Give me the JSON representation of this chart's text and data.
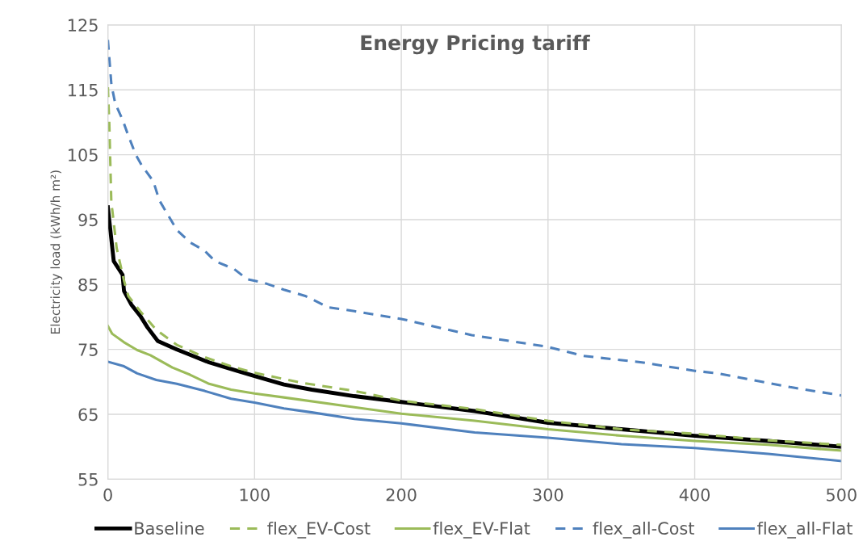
{
  "chart_data": {
    "type": "line",
    "title": "Energy Pricing tariff",
    "ylabel": "Electricity load (kWh/h m²)",
    "xlim": [
      0,
      500
    ],
    "xticks": [
      0,
      100,
      200,
      300,
      400,
      500
    ],
    "ylim": [
      55,
      125
    ],
    "yticks": [
      55,
      65,
      75,
      85,
      95,
      105,
      115,
      125
    ],
    "grid": true,
    "legend": "bottom",
    "marker": "none",
    "series": [
      {
        "name": "Baseline",
        "color": "#000000",
        "line_style": "solid",
        "x": [
          0,
          4,
          10,
          11,
          16,
          22,
          27,
          34,
          47,
          58,
          69,
          78,
          88,
          100,
          120,
          139,
          168,
          200,
          250,
          300,
          350,
          400,
          450,
          500
        ],
        "values": [
          96.9,
          88.6,
          86.5,
          84.0,
          81.9,
          80.2,
          78.4,
          76.3,
          75.0,
          74.0,
          73.0,
          72.4,
          71.7,
          70.9,
          69.6,
          68.8,
          67.8,
          66.9,
          65.5,
          63.7,
          62.7,
          61.7,
          60.9,
          60.0
        ]
      },
      {
        "name": "flex_EV-Cost",
        "color": "#9bbb59",
        "line_style": "dashed",
        "x": [
          0,
          1,
          2.4,
          3,
          6,
          11,
          14,
          22,
          33,
          47,
          66,
          84,
          100,
          131,
          168,
          200,
          250,
          300,
          350,
          400,
          450,
          500
        ],
        "values": [
          115.4,
          109.6,
          97.2,
          96.5,
          90.6,
          85.6,
          83.2,
          80.9,
          78.0,
          75.7,
          73.8,
          72.4,
          71.4,
          69.9,
          68.6,
          67.1,
          65.8,
          64.0,
          62.7,
          62.0,
          61.0,
          60.3
        ]
      },
      {
        "name": "flex_EV-Flat",
        "color": "#9bbb59",
        "line_style": "solid",
        "x": [
          0,
          3,
          11,
          20,
          29,
          44,
          56,
          69,
          84,
          100,
          120,
          168,
          200,
          250,
          300,
          350,
          400,
          450,
          500
        ],
        "values": [
          78.6,
          77.4,
          76.1,
          74.9,
          74.1,
          72.2,
          71.1,
          69.7,
          68.8,
          68.2,
          67.6,
          66.1,
          65.1,
          64.0,
          62.7,
          61.7,
          60.9,
          60.3,
          59.4
        ]
      },
      {
        "name": "flex_all-Cost",
        "color": "#4f81bd",
        "line_style": "dashed",
        "x": [
          0,
          2.4,
          5,
          10,
          14,
          19,
          23,
          31,
          35,
          41,
          47,
          56,
          66,
          73,
          86,
          95,
          106,
          120,
          135,
          150,
          168,
          200,
          248,
          300,
          324,
          364,
          400,
          416,
          432,
          465,
          500
        ],
        "values": [
          122.7,
          115.8,
          112.9,
          110.4,
          107.9,
          105.0,
          103.4,
          100.9,
          98.0,
          95.7,
          93.4,
          91.5,
          90.2,
          88.6,
          87.4,
          85.8,
          85.3,
          84.2,
          83.2,
          81.5,
          80.9,
          79.7,
          77.2,
          75.4,
          74.0,
          73.0,
          71.7,
          71.3,
          70.6,
          69.2,
          67.9
        ]
      },
      {
        "name": "flex_all-Flat",
        "color": "#4f81bd",
        "line_style": "solid",
        "x": [
          0,
          11,
          20,
          33,
          47,
          66,
          84,
          100,
          120,
          139,
          168,
          200,
          250,
          300,
          350,
          400,
          450,
          500
        ],
        "values": [
          73.1,
          72.4,
          71.3,
          70.3,
          69.7,
          68.6,
          67.4,
          66.8,
          65.9,
          65.3,
          64.3,
          63.6,
          62.2,
          61.4,
          60.4,
          59.8,
          58.9,
          57.8
        ]
      }
    ]
  }
}
